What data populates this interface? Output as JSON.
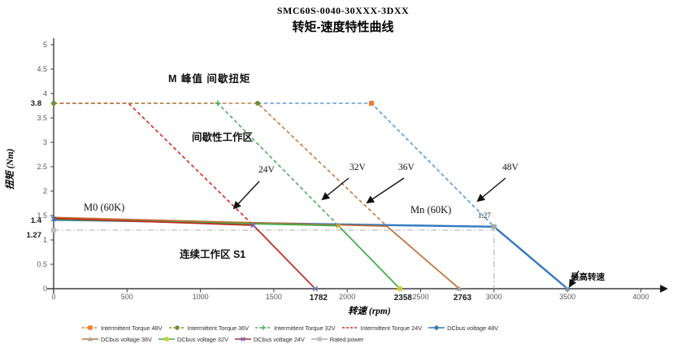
{
  "chart_data": {
    "type": "line",
    "title": "SMC60S-0040-30XXX-3DXX",
    "subtitle": "转矩-速度特性曲线",
    "xlabel": "转速 (rpm)",
    "ylabel": "扭矩 (Nm)",
    "x_unit": "rpm",
    "y_unit": "Nm",
    "xlim": [
      0,
      4200
    ],
    "ylim": [
      0,
      5
    ],
    "grid": false,
    "legend_position": "bottom",
    "x_ticks": [
      0,
      500,
      1000,
      1500,
      2000,
      2500,
      3000,
      3500,
      4000
    ],
    "x_value_labels": [
      1782,
      2358,
      2763
    ],
    "y_ticks": [
      5,
      4.5,
      4,
      3.5,
      3,
      2.5,
      2,
      1.5,
      1,
      0.5,
      0
    ],
    "y_value_labels": [
      3.8,
      1.4,
      1.27
    ],
    "series": [
      {
        "name": "Intermittent Torque 24V",
        "color": "#DF2A1E",
        "style": "dashed",
        "width": 1.6,
        "points": [
          [
            0,
            3.8
          ],
          [
            510,
            3.8
          ],
          [
            1360,
            1.3
          ]
        ]
      },
      {
        "name": "Intermittent Torque 32V",
        "color": "#4FAE62",
        "style": "dashed",
        "width": 1.6,
        "points": [
          [
            0,
            3.8
          ],
          [
            1118,
            3.8
          ],
          [
            1940,
            1.29
          ]
        ]
      },
      {
        "name": "Intermittent Torque 36V",
        "color": "#C57A45",
        "style": "dashed",
        "width": 1.6,
        "points": [
          [
            0,
            3.8
          ],
          [
            1390,
            3.8
          ],
          [
            2270,
            1.28
          ]
        ]
      },
      {
        "name": "Intermittent Torque 48V",
        "color": "#5B9BD5",
        "style": "dashed",
        "width": 1.6,
        "points": [
          [
            1390,
            3.8
          ],
          [
            2165,
            3.8
          ],
          [
            3000,
            1.27
          ]
        ]
      },
      {
        "name": "Rated power",
        "color": "#ABABAB",
        "style": "dashdot",
        "width": 1.1,
        "points": [
          [
            0,
            1.2
          ],
          [
            3000,
            1.2
          ],
          [
            3000,
            0
          ]
        ]
      },
      {
        "name": "DCbus voltage 48V",
        "color": "#3579BE",
        "style": "solid",
        "width": 2.4,
        "points": [
          [
            0,
            1.41
          ],
          [
            3000,
            1.27
          ],
          [
            3500,
            0
          ]
        ]
      },
      {
        "name": "DCbus voltage 36V",
        "color": "#C06F33",
        "style": "solid",
        "width": 1.7,
        "points": [
          [
            0,
            1.46
          ],
          [
            2270,
            1.28
          ],
          [
            2763,
            0
          ]
        ]
      },
      {
        "name": "DCbus voltage 32V",
        "color": "#3FAE4A",
        "style": "solid",
        "width": 1.7,
        "points": [
          [
            0,
            1.42
          ],
          [
            1940,
            1.29
          ],
          [
            2358,
            0
          ]
        ]
      },
      {
        "name": "DCbus voltage 24V",
        "color": "#C0281E",
        "style": "solid",
        "width": 1.7,
        "points": [
          [
            0,
            1.44
          ],
          [
            1360,
            1.3
          ],
          [
            1782,
            0
          ]
        ]
      }
    ],
    "point_markers": [
      {
        "shape": "circle",
        "color": "#6E8F35",
        "rpm": 0,
        "nm": 3.8
      },
      {
        "shape": "plus",
        "color": "#4FAE62",
        "rpm": 1118,
        "nm": 3.8
      },
      {
        "shape": "circle",
        "color": "#6E8F35",
        "rpm": 1390,
        "nm": 3.8
      },
      {
        "shape": "square",
        "color": "#ED7D31",
        "rpm": 2165,
        "nm": 3.8
      },
      {
        "shape": "x",
        "color": "#4472C4",
        "rpm": 0,
        "nm": 1.43
      },
      {
        "shape": "square",
        "color": "#BFBFBF",
        "rpm": 0,
        "nm": 1.2
      },
      {
        "shape": "x",
        "color": "#7C5CBF",
        "rpm": 1360,
        "nm": 1.3
      },
      {
        "shape": "x",
        "color": "#D7A33C",
        "rpm": 1940,
        "nm": 1.29
      },
      {
        "shape": "square",
        "color": "#A6A6A6",
        "rpm": 3000,
        "nm": 1.27
      },
      {
        "shape": "x",
        "color": "#6A7FC0",
        "rpm": 1782,
        "nm": 0
      },
      {
        "shape": "star",
        "color": "#C9CF2F",
        "rpm": 2358,
        "nm": 0
      },
      {
        "shape": "triangle",
        "color": "#A6A6A6",
        "rpm": 2763,
        "nm": 0
      },
      {
        "shape": "x",
        "color": "#7F9FBF",
        "rpm": 3500,
        "nm": 0
      }
    ]
  },
  "annotations": {
    "peak_torque_label": "M 峰值  间歇扭矩",
    "intermittent_zone": "间歇性工作区",
    "arrow_24v": "24V",
    "arrow_32v": "32V",
    "arrow_36v": "36V",
    "arrow_48v": "48V",
    "m0_label": "M0 (60K)",
    "mn_label": "Mn (60K)",
    "rated_torque_value": "1.27",
    "continuous_zone": "连续工作区 S1",
    "max_speed_label": "最高转速"
  },
  "legend": {
    "rows": [
      [
        {
          "label": "Intermittent Torque 48V",
          "color": "#ED7D31",
          "style": "dashed",
          "marker": "square",
          "marker_color": "#ED7D31"
        },
        {
          "label": "Intermittent Torque 36V",
          "color": "#7F9A3D",
          "style": "dashed",
          "marker": "circle",
          "marker_color": "#6E8F35"
        },
        {
          "label": "Intermittent Torque 32V",
          "color": "#4FAE62",
          "style": "dashed",
          "marker": "plus",
          "marker_color": "#4FAE62"
        },
        {
          "label": "Intermittent Torque 24V",
          "color": "#DF2A1E",
          "style": "dashed",
          "marker": "none",
          "marker_color": "#DF2A1E"
        },
        {
          "label": "DCbus voltage 48V",
          "color": "#3579BE",
          "style": "solid",
          "marker": "diamond",
          "marker_color": "#3579BE"
        }
      ],
      [
        {
          "label": "DCbus voltage 36V",
          "color": "#C06F33",
          "style": "solid",
          "marker": "triangle",
          "marker_color": "#A6A6A6"
        },
        {
          "label": "DCbus voltage 32V",
          "color": "#3FAE4A",
          "style": "solid",
          "marker": "star",
          "marker_color": "#C9CF2F"
        },
        {
          "label": "DCbus voltage 24V",
          "color": "#953735",
          "style": "solid",
          "marker": "x",
          "marker_color": "#7C5CBF"
        },
        {
          "label": "Rated power",
          "color": "#ABABAB",
          "style": "solid",
          "marker": "square",
          "marker_color": "#BFBFBF"
        }
      ]
    ]
  }
}
